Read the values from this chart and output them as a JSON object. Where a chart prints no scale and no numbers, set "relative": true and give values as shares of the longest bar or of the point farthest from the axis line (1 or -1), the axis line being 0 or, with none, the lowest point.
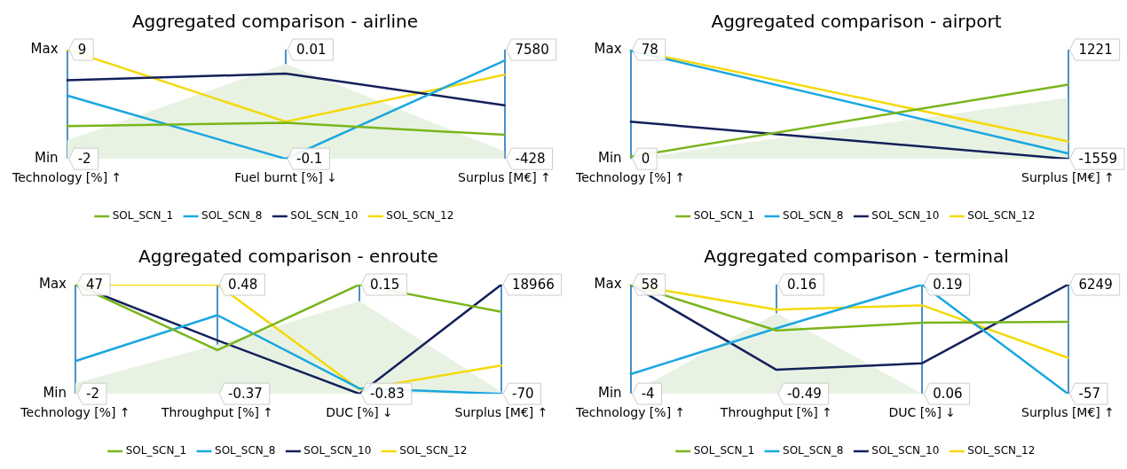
{
  "chart_data": [
    {
      "type": "line",
      "title": "Aggregated comparison - airline",
      "categories": [
        "Technology [%] ↑",
        "Fuel burnt [%] ↓",
        "Surplus [M€] ↑"
      ],
      "relative": true,
      "grid": "x",
      "legend": "bottom",
      "marker": "none",
      "series": [
        {
          "type": "area",
          "color": "#e8f2e3",
          "values": [
            0.17,
            0.87,
            0.07
          ]
        },
        {
          "name": "SOL_SCN_1",
          "color": "#7ab51d",
          "values": [
            0.3,
            0.33,
            0.22
          ]
        },
        {
          "name": "SOL_SCN_8",
          "color": "#1aa7e0",
          "values": [
            0.58,
            0,
            0.9
          ]
        },
        {
          "name": "SOL_SCN_10",
          "color": "#13215a",
          "values": [
            0.72,
            0.78,
            0.49
          ]
        },
        {
          "name": "SOL_SCN_12",
          "color": "#f5d90a",
          "values": [
            1,
            0.34,
            0.77
          ]
        }
      ],
      "annotations": [
        "9",
        "-2",
        "0.01",
        "-0.1",
        "7580",
        "-428",
        "Max",
        "Min"
      ]
    },
    {
      "type": "line",
      "title": "Aggregated comparison - airport",
      "categories": [
        "Technology [%] ↑",
        "Surplus [M€] ↑"
      ],
      "relative": true,
      "grid": "x",
      "legend": "bottom",
      "marker": "none",
      "series": [
        {
          "type": "area",
          "color": "#e8f2e3",
          "values": [
            0,
            0.56
          ]
        },
        {
          "name": "SOL_SCN_1",
          "color": "#7ab51d",
          "values": [
            0.02,
            0.68
          ]
        },
        {
          "name": "SOL_SCN_8",
          "color": "#1aa7e0",
          "values": [
            0.99,
            0.05
          ]
        },
        {
          "name": "SOL_SCN_10",
          "color": "#13215a",
          "values": [
            0.34,
            0
          ]
        },
        {
          "name": "SOL_SCN_12",
          "color": "#f5d90a",
          "values": [
            1,
            0.16
          ]
        }
      ],
      "annotations": [
        "78",
        "0",
        "1221",
        "-1559",
        "Max",
        "Min"
      ]
    },
    {
      "type": "line",
      "title": "Aggregated comparison - enroute",
      "categories": [
        "Technology [%] ↑",
        "Throughput [%] ↑",
        "DUC [%] ↓",
        "Surplus [M€] ↑"
      ],
      "relative": true,
      "grid": "x",
      "legend": "bottom",
      "marker": "none",
      "series": [
        {
          "type": "area",
          "color": "#e8f2e3",
          "values": [
            0.1,
            0.45,
            0.85,
            0.02
          ]
        },
        {
          "name": "SOL_SCN_1",
          "color": "#7ab51d",
          "values": [
            1,
            0.4,
            1,
            0.75
          ]
        },
        {
          "name": "SOL_SCN_8",
          "color": "#1aa7e0",
          "values": [
            0.3,
            0.72,
            0.05,
            0
          ]
        },
        {
          "name": "SOL_SCN_10",
          "color": "#13215a",
          "values": [
            1,
            0.49,
            0,
            1
          ]
        },
        {
          "name": "SOL_SCN_12",
          "color": "#f5d90a",
          "values": [
            1,
            1,
            0.04,
            0.26
          ]
        }
      ],
      "annotations": [
        "47",
        "-2",
        "0.48",
        "-0.37",
        "0.15",
        "-0.83",
        "18966",
        "-70",
        "Max",
        "Min"
      ]
    },
    {
      "type": "line",
      "title": "Aggregated comparison - terminal",
      "categories": [
        "Technology [%] ↑",
        "Throughput [%] ↑",
        "DUC [%] ↓",
        "Surplus [M€] ↑"
      ],
      "relative": true,
      "grid": "x",
      "legend": "bottom",
      "marker": "none",
      "series": [
        {
          "type": "area",
          "color": "#e8f2e3",
          "values": [
            0,
            0.74,
            0,
            0
          ]
        },
        {
          "name": "SOL_SCN_1",
          "color": "#7ab51d",
          "values": [
            1,
            0.58,
            0.65,
            0.66
          ]
        },
        {
          "name": "SOL_SCN_8",
          "color": "#1aa7e0",
          "values": [
            0.18,
            0.6,
            1,
            0
          ]
        },
        {
          "name": "SOL_SCN_10",
          "color": "#13215a",
          "values": [
            1,
            0.22,
            0.28,
            1
          ]
        },
        {
          "name": "SOL_SCN_12",
          "color": "#f5d90a",
          "values": [
            1,
            0.77,
            0.81,
            0.33
          ]
        }
      ],
      "annotations": [
        "58",
        "-4",
        "0.16",
        "-0.49",
        "0.19",
        "0.06",
        "6249",
        "-57",
        "Max",
        "Min"
      ]
    }
  ]
}
